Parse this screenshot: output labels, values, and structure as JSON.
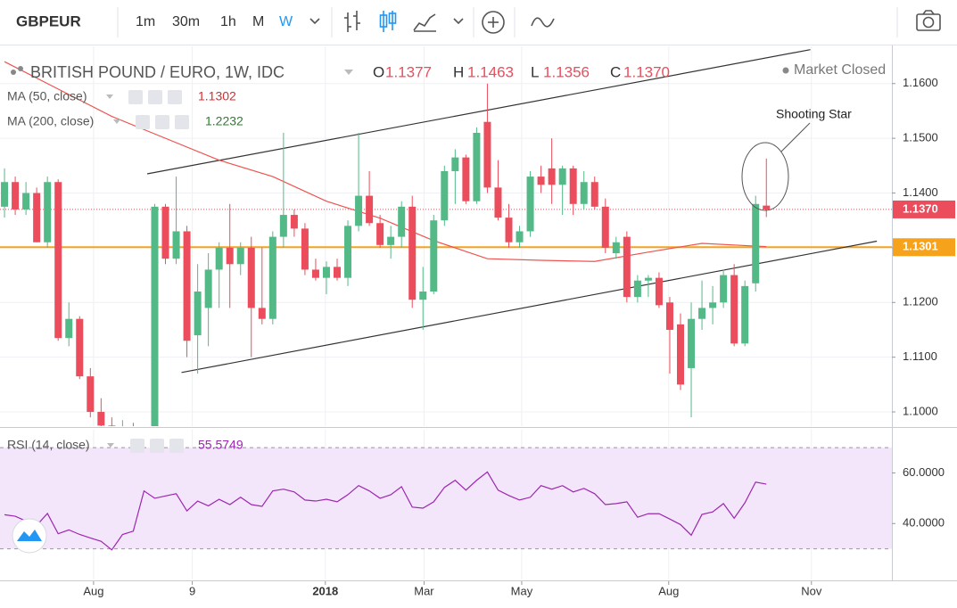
{
  "toolbar": {
    "symbol": "GBPEUR",
    "intervals": [
      "1m",
      "30m",
      "1h",
      "M",
      "W"
    ],
    "active_color": "#2196f3"
  },
  "chart_data": [
    {
      "type": "candlestick",
      "title": "BRITISH POUND / EURO, 1W, IDC",
      "status": "Market Closed",
      "ohlc_names": [
        "O",
        "H",
        "L",
        "C"
      ],
      "last_labels": {
        "open": "1.1377",
        "high": "1.1463",
        "low": "1.1356",
        "close": "1.1370"
      },
      "up_color": "#53b987",
      "down_color": "#eb4d5c",
      "x": [
        0,
        1,
        2,
        3,
        4,
        5,
        6,
        7,
        8,
        9,
        10,
        11,
        12,
        13,
        14,
        15,
        16,
        17,
        18,
        19,
        20,
        21,
        22,
        23,
        24,
        25,
        26,
        27,
        28,
        29,
        30,
        31,
        32,
        33,
        34,
        35,
        36,
        37,
        38,
        39,
        40,
        41,
        42,
        43,
        44,
        45,
        46,
        47,
        48,
        49,
        50,
        51,
        52,
        53,
        54,
        55,
        56,
        57,
        58,
        59,
        60,
        61,
        62,
        63,
        64,
        65,
        66,
        67,
        68,
        69,
        70,
        71
      ],
      "open": [
        1.1375,
        1.142,
        1.137,
        1.14,
        1.131,
        1.142,
        1.1135,
        1.117,
        1.1065,
        1.1,
        1.0975,
        1.095,
        1.097,
        1.094,
        1.096,
        1.1375,
        1.128,
        1.133,
        1.114,
        1.119,
        1.126,
        1.13,
        1.127,
        1.13,
        1.119,
        1.117,
        1.132,
        1.136,
        1.1335,
        1.126,
        1.1245,
        1.1265,
        1.1245,
        1.134,
        1.1395,
        1.1345,
        1.1305,
        1.132,
        1.1375,
        1.1205,
        1.122,
        1.135,
        1.144,
        1.1465,
        1.1385,
        1.153,
        1.141,
        1.1355,
        1.131,
        1.133,
        1.143,
        1.1445,
        1.1415,
        1.1445,
        1.138,
        1.142,
        1.1375,
        1.129,
        1.132,
        1.121,
        1.124,
        1.1245,
        1.12,
        1.116,
        1.108,
        1.117,
        1.119,
        1.12,
        1.125,
        1.1125,
        1.1235,
        1.1377
      ],
      "high": [
        1.1445,
        1.143,
        1.142,
        1.141,
        1.143,
        1.1425,
        1.12,
        1.1175,
        1.108,
        1.1025,
        1.099,
        1.0985,
        1.098,
        1.0965,
        1.138,
        1.138,
        1.143,
        1.134,
        1.127,
        1.129,
        1.131,
        1.138,
        1.131,
        1.132,
        1.13,
        1.133,
        1.151,
        1.137,
        1.1345,
        1.128,
        1.1275,
        1.128,
        1.135,
        1.151,
        1.144,
        1.136,
        1.134,
        1.1385,
        1.1395,
        1.1265,
        1.136,
        1.145,
        1.148,
        1.147,
        1.152,
        1.16,
        1.146,
        1.138,
        1.134,
        1.144,
        1.145,
        1.15,
        1.145,
        1.145,
        1.144,
        1.143,
        1.139,
        1.132,
        1.133,
        1.125,
        1.125,
        1.1255,
        1.121,
        1.118,
        1.12,
        1.124,
        1.123,
        1.126,
        1.127,
        1.124,
        1.1395,
        1.1463
      ],
      "low": [
        1.1355,
        1.136,
        1.136,
        1.131,
        1.13,
        1.113,
        1.112,
        1.106,
        1.099,
        1.096,
        1.093,
        1.093,
        1.093,
        1.093,
        1.095,
        1.127,
        1.127,
        1.11,
        1.107,
        1.112,
        1.119,
        1.119,
        1.125,
        1.11,
        1.116,
        1.116,
        1.13,
        1.132,
        1.125,
        1.124,
        1.1215,
        1.124,
        1.123,
        1.133,
        1.134,
        1.13,
        1.128,
        1.13,
        1.119,
        1.115,
        1.1215,
        1.134,
        1.138,
        1.138,
        1.138,
        1.14,
        1.135,
        1.13,
        1.13,
        1.132,
        1.14,
        1.138,
        1.136,
        1.136,
        1.137,
        1.137,
        1.129,
        1.128,
        1.12,
        1.12,
        1.121,
        1.119,
        1.107,
        1.104,
        1.099,
        1.115,
        1.116,
        1.119,
        1.112,
        1.112,
        1.122,
        1.1356
      ],
      "close": [
        1.142,
        1.137,
        1.14,
        1.131,
        1.142,
        1.1135,
        1.117,
        1.1065,
        1.1,
        1.0975,
        1.095,
        1.097,
        1.094,
        1.096,
        1.1375,
        1.128,
        1.133,
        1.113,
        1.122,
        1.126,
        1.13,
        1.127,
        1.13,
        1.119,
        1.117,
        1.132,
        1.136,
        1.1335,
        1.126,
        1.1245,
        1.1265,
        1.1245,
        1.134,
        1.1395,
        1.1345,
        1.1305,
        1.132,
        1.1375,
        1.1205,
        1.122,
        1.135,
        1.144,
        1.1465,
        1.1385,
        1.151,
        1.141,
        1.1355,
        1.131,
        1.133,
        1.143,
        1.1415,
        1.1415,
        1.1445,
        1.138,
        1.142,
        1.1375,
        1.13,
        1.131,
        1.121,
        1.124,
        1.1245,
        1.1195,
        1.115,
        1.105,
        1.117,
        1.119,
        1.12,
        1.125,
        1.1125,
        1.123,
        1.138,
        1.137
      ],
      "xlim": [
        -0.42,
        82.7
      ],
      "xticks": [
        {
          "value": 8.3,
          "label": "Aug"
        },
        {
          "value": 17.5,
          "label": "9"
        },
        {
          "value": 29.9,
          "label": "2018"
        },
        {
          "value": 39.1,
          "label": "Mar"
        },
        {
          "value": 48.2,
          "label": "May"
        },
        {
          "value": 61.9,
          "label": "Aug"
        },
        {
          "value": 75.2,
          "label": "Nov"
        }
      ],
      "ylim": [
        1.0974,
        1.1668
      ],
      "yticks": [
        {
          "value": 1.1,
          "label": "1.1000"
        },
        {
          "value": 1.11,
          "label": "1.1100"
        },
        {
          "value": 1.12,
          "label": "1.1200"
        },
        {
          "value": 1.13,
          "label": "1.1300"
        },
        {
          "value": 1.14,
          "label": "1.1400"
        },
        {
          "value": 1.15,
          "label": "1.1500"
        },
        {
          "value": 1.16,
          "label": "1.1600"
        }
      ],
      "grid": true,
      "overlays": [
        {
          "name": "MA (50, close)",
          "color": "#ef5350",
          "label_color": "#d32f2f",
          "x": [
            0,
            5,
            10,
            15,
            20,
            25,
            30,
            35,
            40,
            45,
            50,
            55,
            60,
            65,
            70,
            71
          ],
          "values": [
            1.164,
            1.159,
            1.154,
            1.15,
            1.146,
            1.143,
            1.1385,
            1.1354,
            1.1313,
            1.128,
            1.1277,
            1.1275,
            1.1292,
            1.1308,
            1.1303,
            1.1302
          ]
        },
        {
          "name": "MA (200, close)",
          "label_color": "#2e7d32",
          "value": 1.2232
        }
      ],
      "trendlines": [
        {
          "color": "#333333",
          "x": [
            13.3,
            75.1
          ],
          "values": [
            1.1435,
            1.1662
          ]
        },
        {
          "color": "#333333",
          "x": [
            16.5,
            81.3
          ],
          "values": [
            1.1072,
            1.1312
          ]
        }
      ],
      "price_lines": [
        {
          "value": 1.137,
          "label": "1.1370",
          "color": "#eb4d5c",
          "dash": true
        },
        {
          "value": 1.1301,
          "label": "1.1301",
          "color": "#f7a21b",
          "dash": false
        }
      ],
      "annotation": {
        "text": "Shooting Star"
      }
    },
    {
      "type": "line",
      "title": "RSI (14, close)",
      "color": "#9c27b0",
      "x": [
        0,
        1,
        2,
        3,
        4,
        5,
        6,
        7,
        8,
        9,
        10,
        11,
        12,
        13,
        14,
        15,
        16,
        17,
        18,
        19,
        20,
        21,
        22,
        23,
        24,
        25,
        26,
        27,
        28,
        29,
        30,
        31,
        32,
        33,
        34,
        35,
        36,
        37,
        38,
        39,
        40,
        41,
        42,
        43,
        44,
        45,
        46,
        47,
        48,
        49,
        50,
        51,
        52,
        53,
        54,
        55,
        56,
        57,
        58,
        59,
        60,
        61,
        62,
        63,
        64,
        65,
        66,
        67,
        68,
        69,
        70,
        71
      ],
      "values": [
        43.5,
        42.9,
        41,
        39.3,
        44,
        36,
        37.5,
        35.7,
        34.3,
        33,
        29.6,
        35.7,
        37,
        52.9,
        50,
        50.9,
        51.8,
        45,
        48.9,
        47,
        49.6,
        47.5,
        50.4,
        47.5,
        46.8,
        52.9,
        53.6,
        52.5,
        49.3,
        48.9,
        49.6,
        48.6,
        51.4,
        55,
        52.9,
        50,
        51.4,
        54.6,
        46.5,
        46.1,
        48.6,
        54.3,
        57.1,
        53.2,
        57.1,
        60.4,
        53.2,
        51.1,
        49.3,
        50.4,
        55,
        53.6,
        55,
        52.5,
        53.9,
        51.8,
        47.5,
        47.9,
        48.6,
        42.5,
        43.9,
        43.9,
        41.8,
        39.6,
        35.4,
        43.6,
        44.6,
        47.9,
        42.1,
        48.2,
        56.4,
        55.5749
      ],
      "xlim": [
        -0.42,
        82.7
      ],
      "ylim": [
        17.9,
        77.1
      ],
      "yticks": [
        {
          "value": 40,
          "label": "40.0000"
        },
        {
          "value": 60,
          "label": "60.0000"
        }
      ],
      "band": [
        30,
        70
      ],
      "band_color": "#f3e5fa"
    }
  ]
}
